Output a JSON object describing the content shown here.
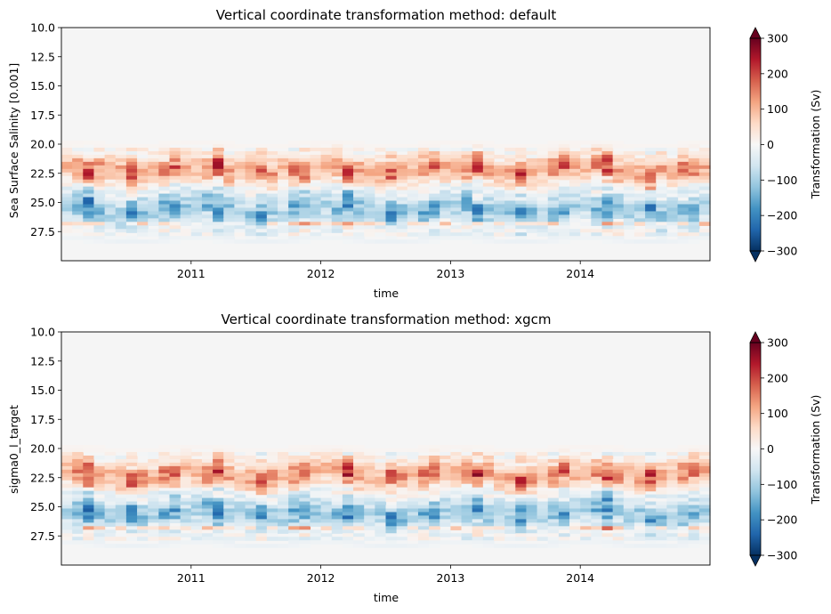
{
  "chart_data": [
    {
      "type": "heatmap",
      "title": "Vertical coordinate transformation method: default",
      "xlabel": "time",
      "ylabel": "Sea Surface Salinity [0.001]",
      "x_ticks": [
        "2011",
        "2012",
        "2013",
        "2014"
      ],
      "x_tick_years": [
        2011,
        2012,
        2013,
        2014
      ],
      "xlim_years": [
        2010.0,
        2015.0
      ],
      "y_ticks": [
        "10.0",
        "12.5",
        "15.0",
        "17.5",
        "20.0",
        "22.5",
        "25.0",
        "27.5"
      ],
      "y_tick_values": [
        10.0,
        12.5,
        15.0,
        17.5,
        20.0,
        22.5,
        25.0,
        27.5
      ],
      "ylim": [
        10.0,
        30.0
      ],
      "y_inverted": true,
      "colorbar": {
        "label": "Transformation (Sv)",
        "ticks": [
          "300",
          "200",
          "100",
          "0",
          "−100",
          "−200",
          "−300"
        ],
        "tick_values": [
          300,
          200,
          100,
          0,
          -100,
          -200,
          -300
        ],
        "vmin": -300,
        "vmax": 300,
        "cmap": "RdBu_r",
        "extend": "both"
      },
      "grid": false,
      "approx_pattern": {
        "blank_above_salinity": 20.5,
        "positive_band_salinity": [
          20.5,
          23.5
        ],
        "negative_band_salinity": [
          23.5,
          27.5
        ],
        "seasonal_peaks_year_fraction": [
          0.2,
          0.55,
          0.85
        ],
        "peak_magnitude_sv": 300
      }
    },
    {
      "type": "heatmap",
      "title": "Vertical coordinate transformation method: xgcm",
      "xlabel": "time",
      "ylabel": "sigma0_l_target",
      "x_ticks": [
        "2011",
        "2012",
        "2013",
        "2014"
      ],
      "x_tick_years": [
        2011,
        2012,
        2013,
        2014
      ],
      "xlim_years": [
        2010.0,
        2015.0
      ],
      "y_ticks": [
        "10.0",
        "12.5",
        "15.0",
        "17.5",
        "20.0",
        "22.5",
        "25.0",
        "27.5"
      ],
      "y_tick_values": [
        10.0,
        12.5,
        15.0,
        17.5,
        20.0,
        22.5,
        25.0,
        27.5
      ],
      "ylim": [
        10.0,
        30.0
      ],
      "y_inverted": true,
      "colorbar": {
        "label": "Transformation (Sv)",
        "ticks": [
          "300",
          "200",
          "100",
          "0",
          "−100",
          "−200",
          "−300"
        ],
        "tick_values": [
          300,
          200,
          100,
          0,
          -100,
          -200,
          -300
        ],
        "vmin": -300,
        "vmax": 300,
        "cmap": "RdBu_r",
        "extend": "both"
      },
      "grid": false,
      "approx_pattern": {
        "blank_above_salinity": 20.5,
        "positive_band_salinity": [
          20.5,
          23.5
        ],
        "negative_band_salinity": [
          23.5,
          27.5
        ],
        "seasonal_peaks_year_fraction": [
          0.2,
          0.55,
          0.85
        ],
        "peak_magnitude_sv": 300
      }
    }
  ],
  "colors": {
    "cmap_stops": [
      "#053061",
      "#2166ac",
      "#4393c3",
      "#92c5de",
      "#d1e5f0",
      "#f7f7f7",
      "#fddbc7",
      "#f4a582",
      "#d6604d",
      "#b2182b",
      "#67001f"
    ],
    "background_field": "#f5f5f5",
    "axes_edge": "#000000"
  }
}
